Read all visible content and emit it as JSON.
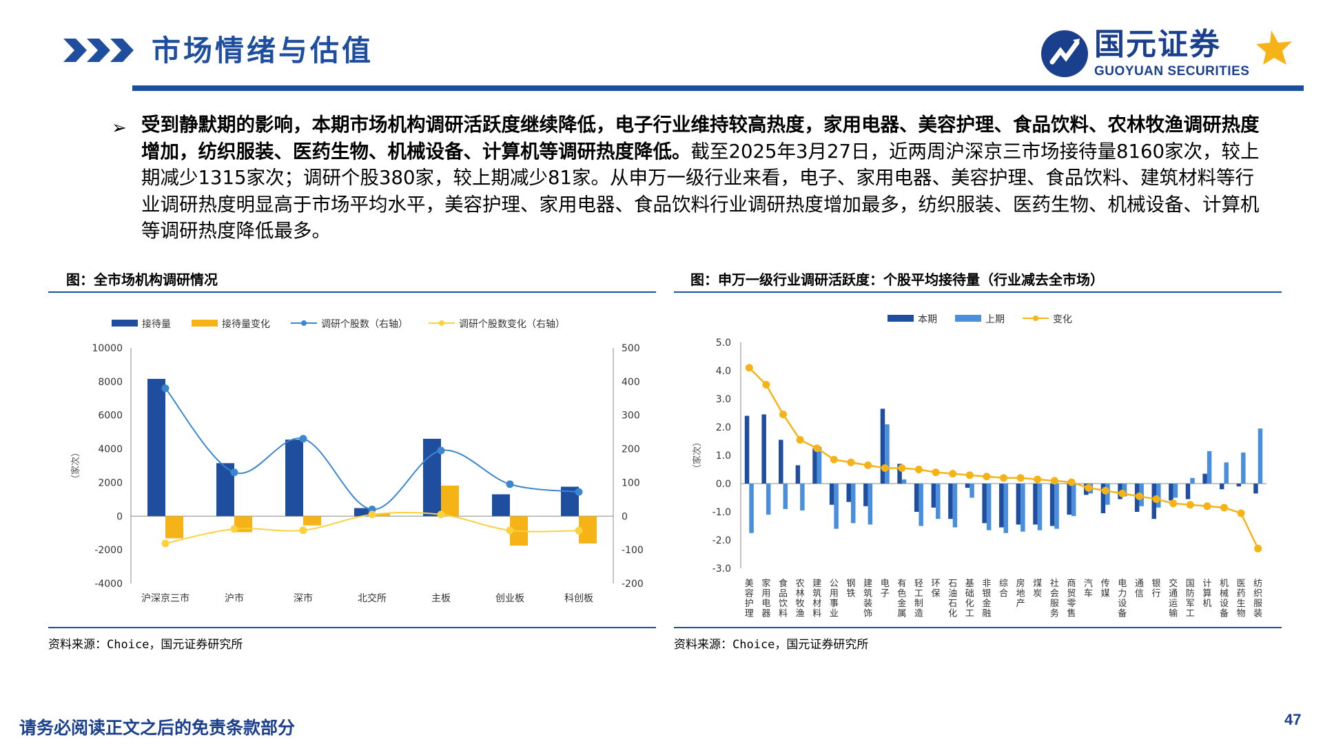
{
  "header": {
    "title": "市场情绪与估值",
    "logo_cn": "国元证券",
    "logo_en": "GUOYUAN SECURITIES"
  },
  "paragraph": {
    "bold": "受到静默期的影响，本期市场机构调研活跃度继续降低，电子行业维持较高热度，家用电器、美容护理、食品饮料、农林牧渔调研热度增加，纺织服装、医药生物、机械设备、计算机等调研热度降低。",
    "normal": "截至2025年3月27日，近两周沪深京三市场接待量8160家次，较上期减少1315家次；调研个股380家，较上期减少81家。从申万一级行业来看，电子、家用电器、美容护理、食品饮料、建筑材料等行业调研热度明显高于市场平均水平，美容护理、家用电器、食品饮料行业调研热度增加最多，纺织服装、医药生物、机械设备、计算机等调研热度降低最多。"
  },
  "left_panel": {
    "title": "图：全市场机构调研情况",
    "source": "资料来源：Choice，国元证券研究所"
  },
  "right_panel": {
    "title": "图：申万一级行业调研活跃度：个股平均接待量（行业减去全市场）",
    "source": "资料来源：Choice，国元证券研究所"
  },
  "footer": {
    "disclaimer": "请务必阅读正文之后的免责条款部分",
    "page": "47"
  },
  "chart_data": [
    {
      "type": "bar",
      "categories": [
        "沪深京三市",
        "沪市",
        "深市",
        "北交所",
        "主板",
        "创业板",
        "科创板"
      ],
      "series": [
        {
          "name": "接待量",
          "kind": "bar",
          "axis": "left",
          "color": "#1f4e9e",
          "values": [
            8160,
            3150,
            4550,
            480,
            4600,
            1300,
            1750
          ]
        },
        {
          "name": "接待量变化",
          "kind": "bar",
          "axis": "left",
          "color": "#f5b317",
          "values": [
            -1315,
            -950,
            -550,
            150,
            1820,
            -1750,
            -1620
          ]
        },
        {
          "name": "调研个股数（右轴）",
          "kind": "line",
          "axis": "right",
          "color": "#3a86d0",
          "values": [
            380,
            130,
            230,
            20,
            195,
            95,
            72
          ]
        },
        {
          "name": "调研个股数变化（右轴）",
          "kind": "line",
          "axis": "right",
          "color": "#fbd13d",
          "values": [
            -81,
            -38,
            -42,
            5,
            5,
            -42,
            -43
          ]
        }
      ],
      "ylabel": "（家次）",
      "ylim": [
        -4000,
        10000
      ],
      "yticks": [
        10000,
        8000,
        6000,
        4000,
        2000,
        0,
        -2000,
        -4000
      ],
      "y2lim": [
        -200,
        500
      ],
      "y2ticks": [
        500,
        400,
        300,
        200,
        100,
        0,
        -100,
        -200
      ],
      "legend": "top"
    },
    {
      "type": "bar",
      "categories": [
        "美容护理",
        "家用电器",
        "食品饮料",
        "农林牧渔",
        "建筑材料",
        "公用事业",
        "钢铁",
        "建筑装饰",
        "电子",
        "有色金属",
        "轻工制造",
        "环保",
        "石油石化",
        "基础化工",
        "非银金融",
        "综合",
        "房地产",
        "煤炭",
        "社会服务",
        "商贸零售",
        "汽车",
        "传媒",
        "电力设备",
        "通信",
        "银行",
        "交通运输",
        "国防军工",
        "计算机",
        "机械设备",
        "医药生物",
        "纺织服装"
      ],
      "series": [
        {
          "name": "本期",
          "kind": "bar",
          "color": "#1f4e9e",
          "values": [
            2.4,
            2.45,
            1.55,
            0.65,
            1.25,
            -0.75,
            -0.65,
            -0.8,
            2.65,
            0.7,
            -1.0,
            -0.85,
            -1.25,
            -0.15,
            -1.4,
            -1.55,
            -1.45,
            -1.45,
            -1.5,
            -1.1,
            -0.4,
            -1.05,
            -0.55,
            -1.0,
            -1.25,
            -0.6,
            -0.55,
            0.35,
            -0.2,
            -0.1,
            -0.35
          ]
        },
        {
          "name": "上期",
          "kind": "bar",
          "color": "#4a8fdc",
          "values": [
            -1.75,
            -1.1,
            -0.9,
            -0.95,
            1.3,
            -1.6,
            -1.4,
            -1.45,
            2.1,
            0.15,
            -1.5,
            -1.25,
            -1.55,
            -0.5,
            -1.65,
            -1.75,
            -1.7,
            -1.65,
            -1.6,
            -1.15,
            -0.35,
            -0.75,
            -0.45,
            -0.8,
            -0.85,
            -0.5,
            0.2,
            1.15,
            0.75,
            1.1,
            1.95
          ]
        },
        {
          "name": "变化",
          "kind": "line",
          "color": "#f5b317",
          "values": [
            4.1,
            3.5,
            2.45,
            1.55,
            1.25,
            0.85,
            0.75,
            0.65,
            0.55,
            0.55,
            0.5,
            0.4,
            0.35,
            0.3,
            0.25,
            0.2,
            0.2,
            0.15,
            0.1,
            0.05,
            -0.15,
            -0.25,
            -0.35,
            -0.45,
            -0.55,
            -0.7,
            -0.75,
            -0.8,
            -0.85,
            -1.05,
            -2.3
          ]
        }
      ],
      "ylabel": "（家次）",
      "ylim": [
        -3.0,
        5.0
      ],
      "yticks": [
        "5.0",
        "4.0",
        "3.0",
        "2.0",
        "1.0",
        "0.0",
        "-1.0",
        "-2.0",
        "-3.0"
      ],
      "legend": "top"
    }
  ]
}
